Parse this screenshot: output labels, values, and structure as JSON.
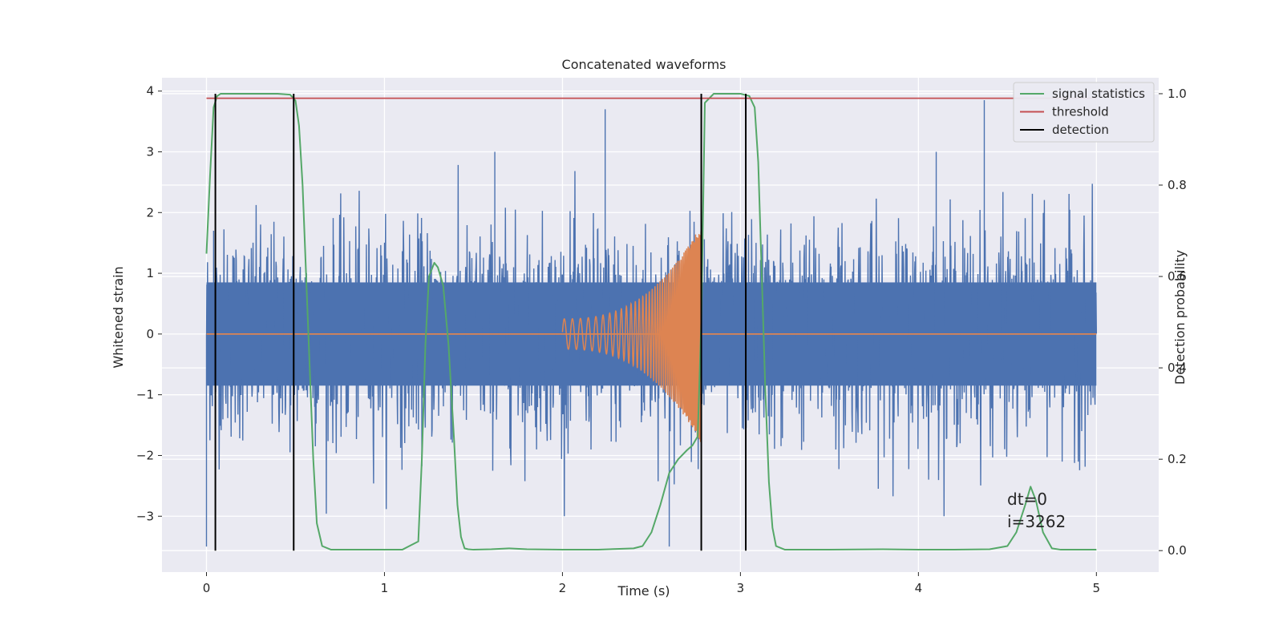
{
  "chart_data": {
    "type": "line",
    "title": "Concatenated waveforms",
    "xlabel": "Time (s)",
    "ylabel": "Whitened strain",
    "y2label": "Detection probability",
    "xlim": [
      -0.25,
      5.35
    ],
    "ylim": [
      -3.92,
      4.22
    ],
    "y2lim": [
      -0.047,
      1.035
    ],
    "xticks": [
      0,
      1,
      2,
      3,
      4,
      5
    ],
    "yticks": [
      -3,
      -2,
      -1,
      0,
      1,
      2,
      3,
      4
    ],
    "y2ticks": [
      0.0,
      0.2,
      0.4,
      0.6,
      0.8,
      1.0
    ],
    "ytick_labels": [
      "−3",
      "−2",
      "−1",
      "0",
      "1",
      "2",
      "3",
      "4"
    ],
    "y2tick_labels": [
      "0.0",
      "0.2",
      "0.4",
      "0.6",
      "0.8",
      "1.0"
    ],
    "grid": true,
    "legend_position": "top-right",
    "colors": {
      "background": "#eaeaf2",
      "grid": "#ffffff",
      "strain": "#4c72b0",
      "injection": "#dd8452",
      "signal": "#55a868",
      "threshold": "#c44e52",
      "detection": "#000000"
    },
    "series": [
      {
        "name": "signal statistics",
        "axis": "right",
        "x": [
          0.0,
          0.02,
          0.04,
          0.06,
          0.08,
          0.1,
          0.2,
          0.3,
          0.4,
          0.47,
          0.5,
          0.52,
          0.54,
          0.56,
          0.58,
          0.6,
          0.62,
          0.65,
          0.7,
          0.8,
          0.9,
          1.0,
          1.1,
          1.19,
          1.21,
          1.23,
          1.25,
          1.28,
          1.3,
          1.33,
          1.36,
          1.39,
          1.41,
          1.43,
          1.45,
          1.47,
          1.5,
          1.6,
          1.7,
          1.8,
          2.0,
          2.2,
          2.4,
          2.45,
          2.5,
          2.55,
          2.6,
          2.65,
          2.7,
          2.73,
          2.76,
          2.78,
          2.8,
          2.85,
          2.9,
          2.95,
          3.0,
          3.05,
          3.08,
          3.1,
          3.12,
          3.14,
          3.16,
          3.18,
          3.2,
          3.25,
          3.3,
          3.5,
          3.8,
          4.0,
          4.2,
          4.4,
          4.5,
          4.55,
          4.6,
          4.63,
          4.66,
          4.7,
          4.75,
          4.8,
          4.9,
          5.0
        ],
        "values": [
          0.65,
          0.82,
          0.97,
          0.995,
          1.0,
          1.0,
          1.0,
          1.0,
          1.0,
          0.998,
          0.985,
          0.93,
          0.8,
          0.6,
          0.4,
          0.2,
          0.06,
          0.01,
          0.002,
          0.002,
          0.002,
          0.002,
          0.002,
          0.02,
          0.2,
          0.45,
          0.6,
          0.63,
          0.62,
          0.58,
          0.45,
          0.25,
          0.1,
          0.03,
          0.005,
          0.003,
          0.002,
          0.003,
          0.005,
          0.003,
          0.002,
          0.002,
          0.005,
          0.01,
          0.04,
          0.1,
          0.17,
          0.2,
          0.22,
          0.23,
          0.25,
          0.5,
          0.98,
          1.0,
          1.0,
          1.0,
          1.0,
          0.995,
          0.97,
          0.85,
          0.6,
          0.35,
          0.15,
          0.05,
          0.01,
          0.002,
          0.002,
          0.002,
          0.003,
          0.002,
          0.002,
          0.003,
          0.01,
          0.04,
          0.1,
          0.14,
          0.11,
          0.04,
          0.005,
          0.002,
          0.002,
          0.002
        ]
      },
      {
        "name": "threshold",
        "axis": "right",
        "x": [
          0.0,
          5.0
        ],
        "values": [
          0.99,
          0.99
        ]
      },
      {
        "name": "detection",
        "axis": "right",
        "x": [
          0.05,
          0.49,
          2.78,
          3.03
        ],
        "values": [
          1.0,
          1.0,
          1.0,
          1.0
        ]
      }
    ],
    "strain_noise": {
      "x_range": [
        0.0,
        5.0
      ],
      "sigma": 0.85,
      "peaks": [
        [
          0.0,
          -3.5
        ],
        [
          0.04,
          1.7
        ],
        [
          0.49,
          1.5
        ],
        [
          1.62,
          3.0
        ],
        [
          2.24,
          3.7
        ],
        [
          2.6,
          -3.5
        ],
        [
          4.1,
          3.0
        ],
        [
          4.37,
          3.85
        ]
      ]
    },
    "injection": {
      "x_range": [
        2.0,
        2.78
      ],
      "start_amplitude": 0.25,
      "end_amplitude": 1.8
    },
    "annotations": [
      "dt=0",
      "i=3262"
    ]
  }
}
